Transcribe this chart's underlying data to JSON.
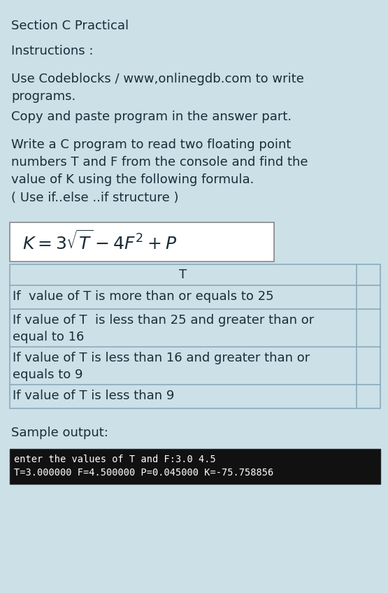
{
  "bg_color": "#cce0e8",
  "title": "Section C Practical",
  "instructions_label": "Instructions :",
  "para1": "Use Codeblocks / www,onlinegdb.com to write\nprograms.",
  "para2": "Copy and paste program in the answer part.",
  "para3": "Write a C program to read two floating point\nnumbers T and F from the console and find the\nvalue of K using the following formula.",
  "para4": "( Use if..else ..if structure )",
  "formula_bg": "#ffffff",
  "formula_text": "$K = 3\\sqrt{T} - 4F^2 + P$",
  "table_header": "T",
  "table_rows": [
    "If  value of T is more than or equals to 25",
    "If value of T  is less than 25 and greater than or\nequal to 16",
    "If value of T is less than 16 and greater than or\nequals to 9",
    "If value of T is less than 9"
  ],
  "sample_label": "Sample output:",
  "terminal_bg": "#111111",
  "terminal_text_color": "#ffffff",
  "terminal_line1": "enter the values of T and F:3.0 4.5",
  "terminal_line2": "T=3.000000 F=4.500000 P=0.045000 K=-75.758856",
  "text_color": "#1a2e3a",
  "table_border_color": "#8aabbb",
  "font_size_body": 13.0,
  "font_size_formula": 18,
  "font_size_terminal": 9.8
}
